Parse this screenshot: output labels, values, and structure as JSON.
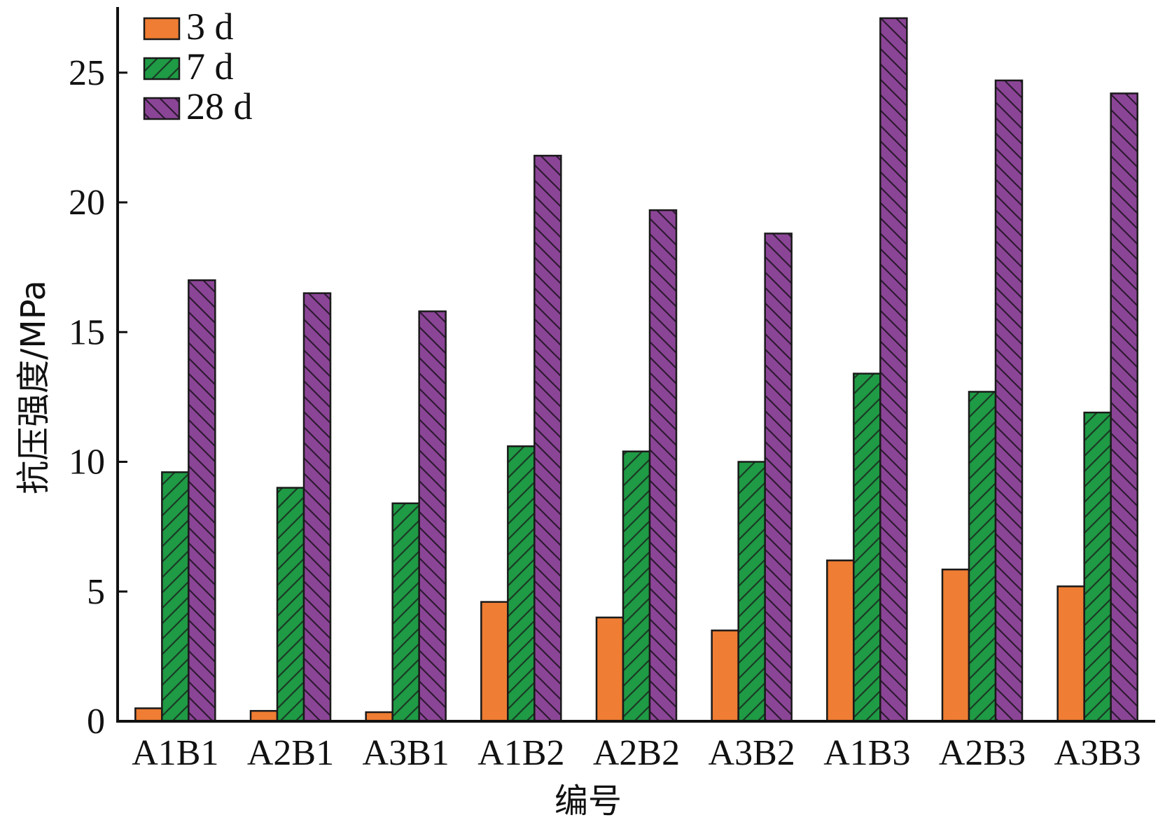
{
  "chart_data": {
    "type": "bar",
    "title": "",
    "xlabel": "编号",
    "ylabel": "抗压强度/MPa",
    "ylim": [
      0,
      27.5
    ],
    "yticks": [
      0,
      5,
      10,
      15,
      20,
      25
    ],
    "grid": false,
    "legend_position": "top-left",
    "categories": [
      "A1B1",
      "A2B1",
      "A3B1",
      "A1B2",
      "A2B2",
      "A3B2",
      "A1B3",
      "A2B3",
      "A3B3"
    ],
    "series": [
      {
        "name": "3 d",
        "color": "#ef7d33",
        "pattern": "none",
        "values": [
          0.5,
          0.4,
          0.35,
          4.6,
          4.0,
          3.5,
          6.2,
          5.85,
          5.2
        ]
      },
      {
        "name": "7 d",
        "color": "#1f9a45",
        "pattern": "forward-hatch",
        "values": [
          9.6,
          9.0,
          8.4,
          10.6,
          10.4,
          10.0,
          13.4,
          12.7,
          11.9
        ]
      },
      {
        "name": "28 d",
        "color": "#8b4596",
        "pattern": "back-hatch",
        "values": [
          17.0,
          16.5,
          15.8,
          21.8,
          19.7,
          18.8,
          27.1,
          24.7,
          24.2
        ]
      }
    ]
  }
}
